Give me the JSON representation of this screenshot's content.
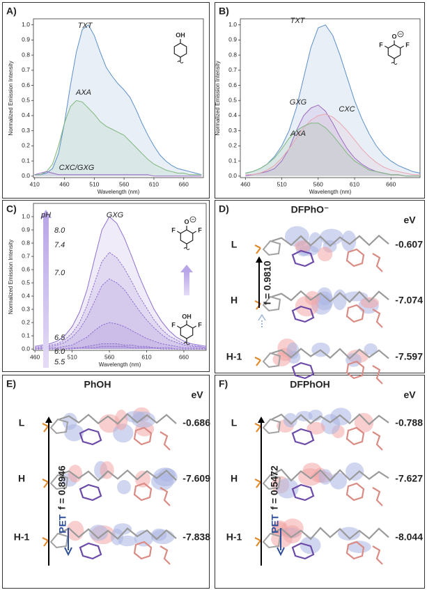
{
  "chart_data": [
    {
      "type": "line",
      "label": "A)",
      "x_label": "Wavelength (nm)",
      "y_label": "Normalized Emission Intensity",
      "x": [
        410,
        420,
        430,
        440,
        450,
        460,
        470,
        480,
        490,
        500,
        510,
        520,
        530,
        540,
        550,
        560,
        570,
        580,
        590,
        600,
        610,
        620,
        630,
        640,
        650,
        660,
        670,
        680,
        690
      ],
      "xlim": [
        408,
        693
      ],
      "xticks": [
        410,
        460,
        510,
        560,
        610,
        660
      ],
      "ylim": [
        -0.01,
        1.04
      ],
      "yticks": [
        {
          "value": 0,
          "label": "0.0"
        },
        0.1,
        0.2,
        0.3,
        0.4,
        0.5,
        0.6,
        0.7,
        0.8,
        0.9,
        {
          "value": 1,
          "label": "1.0"
        }
      ],
      "filled": true,
      "series": [
        {
          "name": "TXT",
          "color": "#5b8fc9",
          "style": "solid",
          "values": [
            0.01,
            0.01,
            0.02,
            0.05,
            0.15,
            0.35,
            0.6,
            0.82,
            0.97,
            1.0,
            0.93,
            0.82,
            0.72,
            0.66,
            0.61,
            0.57,
            0.52,
            0.44,
            0.35,
            0.27,
            0.2,
            0.14,
            0.1,
            0.07,
            0.05,
            0.04,
            0.03,
            0.02,
            0.01
          ]
        },
        {
          "name": "AXA",
          "color": "#7fb77e",
          "style": "solid",
          "values": [
            0.01,
            0.01,
            0.03,
            0.08,
            0.2,
            0.35,
            0.46,
            0.5,
            0.49,
            0.45,
            0.41,
            0.36,
            0.33,
            0.31,
            0.29,
            0.27,
            0.23,
            0.19,
            0.15,
            0.11,
            0.08,
            0.06,
            0.04,
            0.03,
            0.02,
            0.02,
            0.01,
            0.01,
            0.01
          ]
        },
        {
          "name": "CXC/GXG",
          "color": "#9b6bc4",
          "style": "solid",
          "values": [
            0.01,
            0.02,
            0.03,
            0.02,
            0.01,
            0.01,
            0.01,
            0.01,
            0.01,
            0.01,
            0.01,
            0.01,
            0.01,
            0.01,
            0.01,
            0.01,
            0.01,
            0.01,
            0.01,
            0.01,
            0,
            0,
            0,
            0,
            0,
            0,
            0,
            0,
            0
          ]
        }
      ],
      "structure": [
        "OH"
      ]
    },
    {
      "type": "line",
      "label": "B)",
      "x_label": "Wavelength (nm)",
      "y_label": "Normalized Emission Intensity",
      "x": [
        460,
        470,
        480,
        490,
        500,
        510,
        520,
        530,
        540,
        550,
        560,
        570,
        580,
        590,
        600,
        610,
        620,
        630,
        640,
        650,
        660,
        670,
        680,
        690,
        700
      ],
      "xlim": [
        453,
        700
      ],
      "xticks": [
        460,
        510,
        560,
        610,
        660
      ],
      "ylim": [
        -0.01,
        1.04
      ],
      "yticks": [
        {
          "value": 0,
          "label": "0.0"
        },
        0.1,
        0.2,
        0.3,
        0.4,
        0.5,
        0.6,
        0.7,
        0.8,
        0.9,
        {
          "value": 1,
          "label": "1.0"
        }
      ],
      "filled": true,
      "series": [
        {
          "name": "TXT",
          "color": "#5b8fc9",
          "style": "solid",
          "values": [
            0.02,
            0.03,
            0.05,
            0.08,
            0.13,
            0.2,
            0.3,
            0.45,
            0.65,
            0.85,
            0.98,
            1.0,
            0.93,
            0.8,
            0.65,
            0.5,
            0.38,
            0.28,
            0.2,
            0.14,
            0.1,
            0.07,
            0.05,
            0.03,
            0.02
          ]
        },
        {
          "name": "GXG",
          "color": "#9b6bc4",
          "style": "solid",
          "values": [
            0,
            0.01,
            0.02,
            0.03,
            0.05,
            0.1,
            0.18,
            0.3,
            0.4,
            0.45,
            0.47,
            0.43,
            0.35,
            0.26,
            0.18,
            0.12,
            0.08,
            0.05,
            0.03,
            0.02,
            0.01,
            0.01,
            0,
            0,
            0
          ]
        },
        {
          "name": "CXC",
          "color": "#e9a6b0",
          "style": "solid",
          "values": [
            0.01,
            0.01,
            0.02,
            0.04,
            0.07,
            0.12,
            0.18,
            0.25,
            0.32,
            0.37,
            0.4,
            0.41,
            0.39,
            0.35,
            0.3,
            0.24,
            0.18,
            0.13,
            0.09,
            0.06,
            0.04,
            0.03,
            0.02,
            0.01,
            0.01
          ]
        },
        {
          "name": "AXA",
          "color": "#7fb77e",
          "style": "solid",
          "values": [
            0.02,
            0.03,
            0.05,
            0.08,
            0.12,
            0.18,
            0.25,
            0.3,
            0.33,
            0.35,
            0.35,
            0.32,
            0.27,
            0.21,
            0.15,
            0.1,
            0.07,
            0.04,
            0.03,
            0.02,
            0.01,
            0.01,
            0,
            0,
            0
          ]
        }
      ],
      "structure": [
        "O",
        "F",
        "F"
      ]
    },
    {
      "type": "line",
      "label": "C)",
      "x_label": "Wavelength (nm)",
      "y_label": "Normalized Emission Intensity",
      "annotation": "GXG",
      "legend_title": "pH",
      "x": [
        460,
        470,
        480,
        490,
        500,
        510,
        520,
        530,
        540,
        550,
        560,
        570,
        580,
        590,
        600,
        610,
        620,
        630,
        640,
        650,
        660,
        670,
        680,
        690
      ],
      "xlim": [
        458,
        690
      ],
      "xticks": [
        460,
        510,
        560,
        610,
        660
      ],
      "ylim": [
        -0.01,
        1.1
      ],
      "yticks": [
        {
          "value": 0,
          "label": "0.0"
        },
        0.1,
        0.2,
        0.3,
        0.4,
        0.5,
        0.6,
        0.7,
        0.8,
        0.9,
        {
          "value": 1,
          "label": "1.0"
        }
      ],
      "filled": true,
      "series": [
        {
          "name": "8.0",
          "color": "#8e6fd0",
          "style": "solid",
          "values": [
            0.02,
            0.03,
            0.04,
            0.06,
            0.1,
            0.17,
            0.28,
            0.45,
            0.68,
            0.9,
            1.0,
            0.95,
            0.84,
            0.7,
            0.55,
            0.42,
            0.3,
            0.21,
            0.14,
            0.09,
            0.06,
            0.04,
            0.03,
            0.02
          ]
        },
        {
          "name": "7.4",
          "color": "#8e6fd0",
          "style": "dashed",
          "values": [
            0.01,
            0.02,
            0.03,
            0.04,
            0.07,
            0.12,
            0.2,
            0.33,
            0.5,
            0.66,
            0.73,
            0.69,
            0.61,
            0.51,
            0.4,
            0.31,
            0.22,
            0.15,
            0.1,
            0.07,
            0.04,
            0.03,
            0.02,
            0.01
          ]
        },
        {
          "name": "7.0",
          "color": "#8e6fd0",
          "style": "dashed",
          "values": [
            0.01,
            0.02,
            0.02,
            0.03,
            0.05,
            0.09,
            0.15,
            0.24,
            0.36,
            0.48,
            0.53,
            0.5,
            0.45,
            0.37,
            0.29,
            0.22,
            0.16,
            0.11,
            0.07,
            0.05,
            0.03,
            0.02,
            0.02,
            0.01
          ]
        },
        {
          "name": "6.5",
          "color": "#8e6fd0",
          "style": "dashed",
          "values": [
            0,
            0.01,
            0.01,
            0.01,
            0.02,
            0.03,
            0.06,
            0.09,
            0.14,
            0.18,
            0.2,
            0.19,
            0.17,
            0.14,
            0.11,
            0.08,
            0.06,
            0.04,
            0.03,
            0.02,
            0.01,
            0.01,
            0.01,
            0
          ]
        },
        {
          "name": "6.0",
          "color": "#8e6fd0",
          "style": "dashed",
          "values": [
            0,
            0,
            0,
            0,
            0,
            0.01,
            0.01,
            0.02,
            0.03,
            0.04,
            0.04,
            0.04,
            0.03,
            0.03,
            0.02,
            0.02,
            0.01,
            0.01,
            0.01,
            0,
            0,
            0,
            0,
            0
          ]
        },
        {
          "name": "5.5",
          "color": "#8e6fd0",
          "style": "dashed",
          "values": [
            0,
            0,
            0,
            0,
            0,
            0,
            0.01,
            0.01,
            0.01,
            0.02,
            0.02,
            0.02,
            0.02,
            0.01,
            0.01,
            0.01,
            0.01,
            0,
            0,
            0,
            0,
            0,
            0,
            0
          ]
        }
      ],
      "structure": [
        "O",
        "F",
        "F",
        "OH",
        "F",
        "F"
      ]
    }
  ],
  "panels": [
    {
      "label": "D)",
      "title": "DFPhO⁻",
      "unit": "eV",
      "oscillator": "f = 0.9810",
      "levels": [
        {
          "name": "L",
          "energy": -0.607
        },
        {
          "name": "H",
          "energy": -7.074
        },
        {
          "name": "H-1",
          "energy": -7.597
        }
      ]
    },
    {
      "label": "E)",
      "title": "PhOH",
      "unit": "eV",
      "oscillator": "f = 0.8946",
      "pet": "PET",
      "levels": [
        {
          "name": "L",
          "energy": -0.686
        },
        {
          "name": "H",
          "energy": -7.609
        },
        {
          "name": "H-1",
          "energy": -7.838
        }
      ]
    },
    {
      "label": "F)",
      "title": "DFPhOH",
      "unit": "eV",
      "oscillator": "f = 0.5472",
      "pet": "PET",
      "levels": [
        {
          "name": "L",
          "energy": -0.788
        },
        {
          "name": "H",
          "energy": -7.627
        },
        {
          "name": "H-1",
          "energy": -8.044
        }
      ]
    }
  ]
}
